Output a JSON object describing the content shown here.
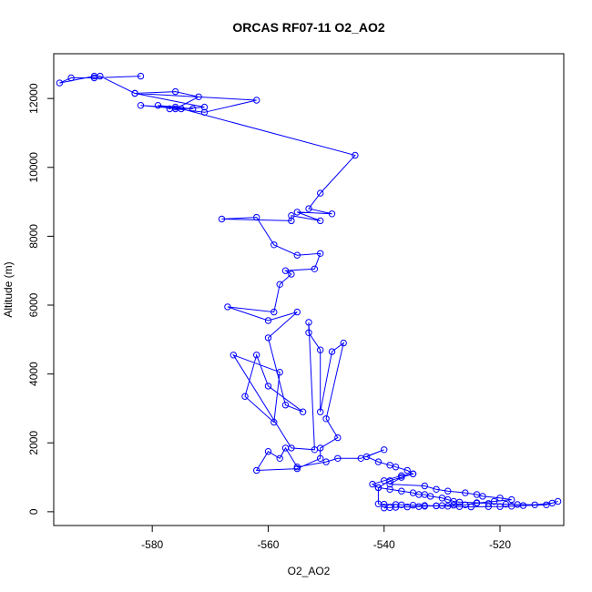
{
  "chart_data": {
    "type": "line",
    "title": "ORCAS RF07-11 O2_AO2",
    "xlabel": "O2_AO2",
    "ylabel": "Altitude (m)",
    "xlim": [
      -597,
      -509
    ],
    "ylim": [
      -400,
      13300
    ],
    "xticks": [
      -580,
      -560,
      -540,
      -520
    ],
    "yticks": [
      0,
      2000,
      4000,
      6000,
      8000,
      10000,
      12000
    ],
    "grid": false,
    "legend": "none",
    "marker": "open-circle",
    "series": [
      {
        "color": "#0000ff",
        "x": [
          -582,
          -590,
          -594,
          -596,
          -590,
          -589,
          -583,
          -576,
          -572,
          -576,
          -571,
          -562,
          -583,
          -571,
          -575,
          -582,
          -573,
          -579,
          -577,
          -576,
          -545,
          -551,
          -553,
          -549,
          -555,
          -551,
          -556,
          -556,
          -568,
          -562,
          -559,
          -555,
          -551,
          -552,
          -557,
          -556,
          -558,
          -559,
          -567,
          -560,
          -555,
          -560,
          -557,
          -554,
          -560,
          -562,
          -564,
          -559,
          -558,
          -566,
          -556,
          -552,
          -553,
          -553,
          -551,
          -551,
          -549,
          -547,
          -550,
          -548,
          -551,
          -551,
          -555,
          -562,
          -560,
          -558,
          -557,
          -555,
          -550,
          -548,
          -544,
          -540,
          -543,
          -541,
          -539,
          -538,
          -536,
          -535,
          -537,
          -540,
          -542,
          -541,
          -539,
          -537,
          -535,
          -534,
          -533,
          -532,
          -530,
          -529,
          -528,
          -527,
          -524,
          -522,
          -519,
          -517,
          -514,
          -511,
          -510,
          -512,
          -516,
          -518,
          -520,
          -522,
          -525,
          -527,
          -529,
          -531,
          -533,
          -535,
          -537,
          -538,
          -540,
          -541,
          -541,
          -539,
          -535,
          -537,
          -539,
          -533,
          -531,
          -529,
          -526,
          -524,
          -523,
          -520,
          -518,
          -521,
          -524,
          -526,
          -528,
          -530,
          -531,
          -533,
          -534,
          -536,
          -538,
          -539,
          -540
        ],
        "y": [
          12650,
          12600,
          12600,
          12450,
          12650,
          12650,
          12150,
          12200,
          12050,
          11700,
          11600,
          11950,
          12150,
          11750,
          11700,
          11800,
          11700,
          11800,
          11700,
          11750,
          10350,
          9250,
          8800,
          8650,
          8700,
          8450,
          8600,
          8450,
          8500,
          8550,
          7750,
          7450,
          7500,
          7050,
          7000,
          6900,
          6600,
          5800,
          5950,
          5550,
          5800,
          5050,
          3100,
          2900,
          3650,
          4550,
          3350,
          2600,
          4050,
          4550,
          1850,
          1800,
          5500,
          5200,
          4700,
          2900,
          4650,
          4900,
          2700,
          2150,
          1850,
          1550,
          1250,
          1200,
          1750,
          1550,
          1850,
          1300,
          1450,
          1550,
          1550,
          1800,
          1600,
          1450,
          1350,
          1300,
          1200,
          1100,
          1050,
          900,
          800,
          700,
          650,
          600,
          550,
          500,
          500,
          450,
          400,
          350,
          300,
          280,
          260,
          240,
          220,
          210,
          200,
          250,
          300,
          200,
          180,
          160,
          150,
          150,
          140,
          150,
          160,
          170,
          180,
          190,
          200,
          210,
          220,
          230,
          700,
          900,
          1100,
          1000,
          800,
          750,
          650,
          600,
          550,
          500,
          450,
          400,
          350,
          300,
          250,
          200,
          190,
          180,
          170,
          160,
          150,
          140,
          130,
          120,
          110
        ]
      }
    ]
  }
}
